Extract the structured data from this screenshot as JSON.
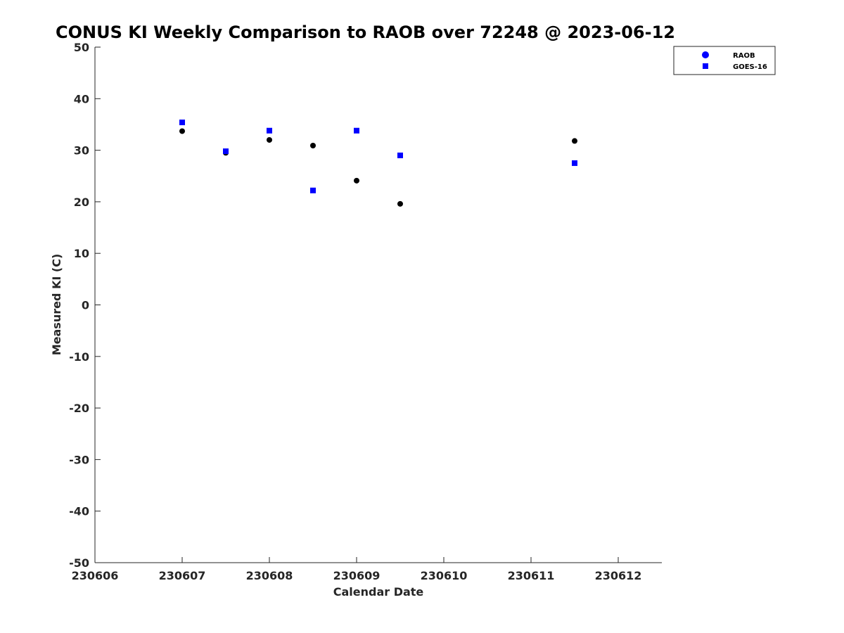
{
  "chart_data": {
    "type": "scatter",
    "title": "CONUS KI Weekly Comparison to RAOB over 72248 @ 2023-06-12",
    "xlabel": "Calendar Date",
    "ylabel": "Measured KI (C)",
    "xlim": [
      230606,
      230612.5
    ],
    "ylim": [
      -50,
      50
    ],
    "xticks": [
      230606,
      230607,
      230608,
      230609,
      230610,
      230611,
      230612
    ],
    "xtick_labels": [
      "230606",
      "230607",
      "230608",
      "230609",
      "230610",
      "230611",
      "230612"
    ],
    "yticks": [
      50,
      40,
      30,
      20,
      10,
      0,
      -10,
      -20,
      -30,
      -40,
      -50
    ],
    "ytick_labels": [
      "50",
      "40",
      "30",
      "20",
      "10",
      "0",
      "-10",
      "-20",
      "-30",
      "-40",
      "-50"
    ],
    "grid": false,
    "legend_position": "top-right",
    "series": [
      {
        "name": "RAOB",
        "marker": "circle",
        "color": "#000000",
        "legend_color": "#0000ff",
        "points": [
          {
            "x": 230607.0,
            "y": 33.7
          },
          {
            "x": 230607.5,
            "y": 29.5
          },
          {
            "x": 230608.0,
            "y": 32.0
          },
          {
            "x": 230608.5,
            "y": 30.9
          },
          {
            "x": 230609.0,
            "y": 24.1
          },
          {
            "x": 230609.5,
            "y": 19.6
          },
          {
            "x": 230611.5,
            "y": 31.8
          }
        ]
      },
      {
        "name": "GOES-16",
        "marker": "square",
        "color": "#0000ff",
        "legend_color": "#0000ff",
        "points": [
          {
            "x": 230607.0,
            "y": 35.4
          },
          {
            "x": 230607.5,
            "y": 29.8
          },
          {
            "x": 230608.0,
            "y": 33.8
          },
          {
            "x": 230608.5,
            "y": 22.2
          },
          {
            "x": 230609.0,
            "y": 33.8
          },
          {
            "x": 230609.5,
            "y": 29.0
          },
          {
            "x": 230611.5,
            "y": 27.5
          }
        ]
      }
    ]
  }
}
